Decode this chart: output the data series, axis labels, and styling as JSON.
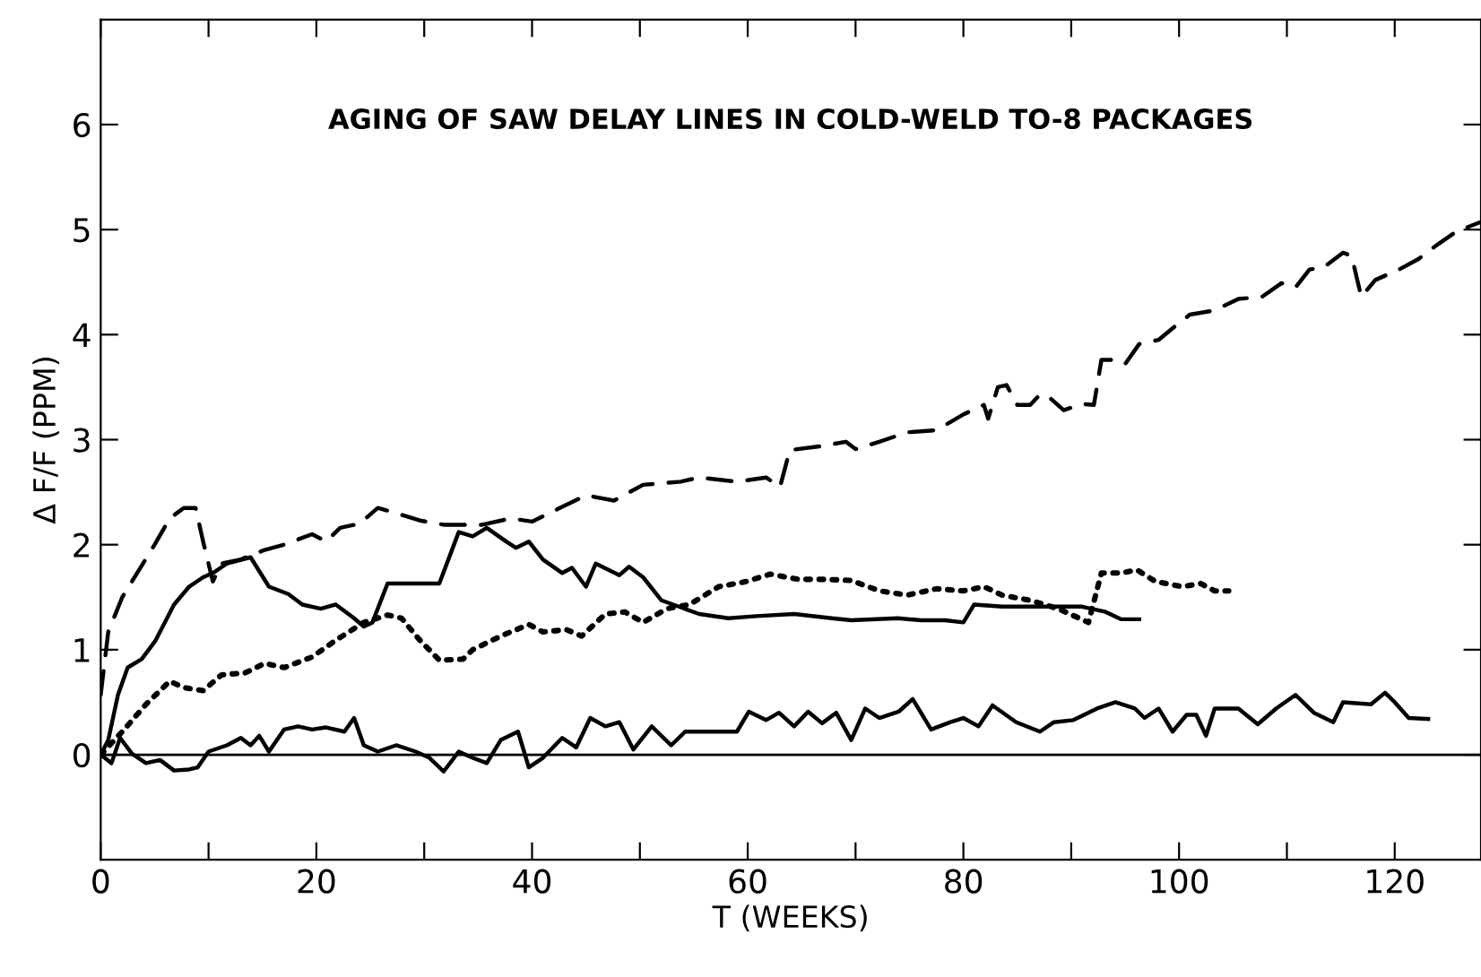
{
  "chart_data": {
    "type": "line",
    "title": "AGING OF SAW DELAY LINES IN COLD-WELD TO-8 PACKAGES",
    "xlabel": "T (WEEKS)",
    "ylabel": "Δ F/F (PPM)",
    "xlim": [
      0,
      128
    ],
    "ylim": [
      -1,
      7
    ],
    "xticks": [
      0,
      {
        "value": 10,
        "label": null
      },
      20,
      {
        "value": 30,
        "label": null
      },
      40,
      {
        "value": 50,
        "label": null
      },
      60,
      {
        "value": 70,
        "label": null
      },
      80,
      {
        "value": 90,
        "label": null
      },
      100,
      {
        "value": 110,
        "label": null
      },
      120
    ],
    "yticks": [
      0,
      1,
      2,
      3,
      4,
      5,
      6
    ],
    "grid": false,
    "marker": "none",
    "ref_lines": [
      {
        "axis": "y",
        "value": 0,
        "color": "#000000",
        "line_style": "solid"
      }
    ],
    "series": [
      {
        "color": "#000000",
        "line_style": "dashed",
        "x": [
          0,
          0.7,
          2,
          3.8,
          5,
          6.4,
          7.7,
          8.8,
          9.5,
          10.4,
          11.2,
          13,
          15.2,
          17,
          19.6,
          20.9,
          22.2,
          24,
          25.7,
          27.4,
          29.6,
          31.8,
          35.4,
          38,
          40,
          42.4,
          45,
          47.6,
          50.3,
          53.8,
          55.5,
          59,
          61.7,
          63,
          63.9,
          66.9,
          69.1,
          70,
          72.2,
          74.8,
          77.5,
          80,
          81.9,
          82.3,
          83.2,
          84,
          85,
          86.2,
          87.1,
          88,
          89.3,
          91,
          92.1,
          92.8,
          94.1,
          95,
          96.3,
          98.1,
          99.4,
          101,
          103.3,
          105.5,
          107.7,
          109.5,
          110.8,
          112.1,
          113.4,
          115.2,
          116,
          116.9,
          118.2,
          120.4,
          122.2,
          124,
          125.7,
          127.9
        ],
        "values": [
          0.57,
          1.17,
          1.5,
          1.8,
          2.0,
          2.25,
          2.35,
          2.35,
          2.03,
          1.65,
          1.82,
          1.86,
          1.95,
          2.0,
          2.1,
          2.03,
          2.16,
          2.2,
          2.35,
          2.3,
          2.23,
          2.19,
          2.19,
          2.25,
          2.22,
          2.34,
          2.47,
          2.42,
          2.57,
          2.6,
          2.64,
          2.6,
          2.64,
          2.55,
          2.9,
          2.94,
          2.98,
          2.91,
          2.98,
          3.07,
          3.09,
          3.24,
          3.33,
          3.2,
          3.5,
          3.52,
          3.33,
          3.33,
          3.43,
          3.4,
          3.28,
          3.34,
          3.33,
          3.76,
          3.76,
          3.72,
          3.91,
          3.95,
          4.06,
          4.19,
          4.23,
          4.34,
          4.36,
          4.49,
          4.45,
          4.62,
          4.64,
          4.78,
          4.75,
          4.36,
          4.52,
          4.62,
          4.72,
          4.86,
          4.98,
          5.07
        ]
      },
      {
        "color": "#000000",
        "line_style": "solid",
        "x": [
          0,
          0.7,
          1.6,
          2.5,
          3.8,
          5.1,
          6.8,
          8.2,
          9.5,
          10.4,
          11.7,
          13.9,
          15.6,
          17.4,
          18.7,
          20.4,
          21.8,
          23.5,
          24.4,
          25.2,
          26.6,
          31.4,
          33.2,
          34.5,
          35.8,
          37.6,
          38.5,
          39.7,
          41,
          42.8,
          43.7,
          45,
          45.9,
          48.1,
          49,
          50.3,
          52,
          55.5,
          58.2,
          60.8,
          64.3,
          67.8,
          69.6,
          73.9,
          76.1,
          78.3,
          80,
          81,
          83.6,
          87.1,
          91,
          93.2,
          94.6,
          96.3
        ],
        "values": [
          0,
          0.14,
          0.57,
          0.83,
          0.91,
          1.09,
          1.43,
          1.6,
          1.69,
          1.73,
          1.82,
          1.88,
          1.6,
          1.53,
          1.43,
          1.39,
          1.43,
          1.3,
          1.22,
          1.26,
          1.63,
          1.63,
          2.12,
          2.08,
          2.16,
          2.03,
          1.97,
          2.03,
          1.86,
          1.73,
          1.78,
          1.6,
          1.82,
          1.71,
          1.79,
          1.69,
          1.47,
          1.34,
          1.3,
          1.32,
          1.34,
          1.3,
          1.28,
          1.3,
          1.28,
          1.28,
          1.26,
          1.43,
          1.41,
          1.41,
          1.41,
          1.36,
          1.29,
          1.29
        ]
      },
      {
        "color": "#000000",
        "line_style": "dotted",
        "x": [
          0,
          2,
          4.2,
          6.4,
          7.7,
          9.5,
          11.2,
          13.4,
          15.2,
          17,
          19.6,
          21.8,
          24.4,
          26.6,
          27.9,
          29.6,
          31.4,
          33.6,
          34.5,
          37.1,
          39.7,
          41,
          43.2,
          44.6,
          46.8,
          48.6,
          50.3,
          52.5,
          54.6,
          57.3,
          59.9,
          62.1,
          64.7,
          66.9,
          69.6,
          72.2,
          74.8,
          77.5,
          80,
          81.9,
          83.6,
          86.2,
          88.8,
          91.6,
          92.8,
          94.6,
          96.1,
          97.8,
          100.3,
          102,
          103.3,
          104.6
        ],
        "values": [
          0,
          0.22,
          0.48,
          0.7,
          0.64,
          0.61,
          0.76,
          0.78,
          0.87,
          0.83,
          0.93,
          1.09,
          1.26,
          1.33,
          1.3,
          1.09,
          0.9,
          0.91,
          1.0,
          1.13,
          1.24,
          1.17,
          1.19,
          1.13,
          1.34,
          1.36,
          1.26,
          1.39,
          1.43,
          1.6,
          1.65,
          1.72,
          1.67,
          1.67,
          1.66,
          1.56,
          1.52,
          1.58,
          1.56,
          1.6,
          1.52,
          1.47,
          1.39,
          1.26,
          1.73,
          1.73,
          1.76,
          1.65,
          1.6,
          1.63,
          1.56,
          1.56
        ]
      },
      {
        "color": "#000000",
        "line_style": "solid",
        "x": [
          0,
          1,
          1.8,
          2.9,
          4.2,
          5.5,
          6.8,
          8.2,
          9,
          10,
          11.7,
          13,
          13.9,
          14.7,
          15.6,
          17,
          18.3,
          19.6,
          20.9,
          22.6,
          23.5,
          24.4,
          25.7,
          27.4,
          29.2,
          30.5,
          31.8,
          33.2,
          34.5,
          35.8,
          37.1,
          38.7,
          39.7,
          41,
          42.8,
          44.1,
          45.4,
          46.8,
          48.1,
          49.4,
          51.1,
          52.9,
          54.2,
          56,
          59,
          60.1,
          61.7,
          62.9,
          64.3,
          65.6,
          66.9,
          68.2,
          69.6,
          70.9,
          72.2,
          74,
          75.3,
          77,
          78.8,
          80,
          81.4,
          82.7,
          84.9,
          87.1,
          88.4,
          90.2,
          92.4,
          94.1,
          95.9,
          96.8,
          98.1,
          99.4,
          100.7,
          101.6,
          102.5,
          103.3,
          105.5,
          107.3,
          109,
          110.8,
          112.5,
          114.3,
          115.2,
          117.8,
          119.1,
          120,
          121.3,
          123.1
        ],
        "values": [
          0,
          -0.08,
          0.16,
          0.01,
          -0.08,
          -0.05,
          -0.15,
          -0.14,
          -0.12,
          0.03,
          0.09,
          0.16,
          0.09,
          0.18,
          0.03,
          0.24,
          0.27,
          0.24,
          0.26,
          0.22,
          0.35,
          0.09,
          0.03,
          0.09,
          0.03,
          -0.03,
          -0.16,
          0.03,
          -0.03,
          -0.08,
          0.14,
          0.22,
          -0.12,
          -0.03,
          0.16,
          0.07,
          0.35,
          0.27,
          0.31,
          0.05,
          0.27,
          0.09,
          0.22,
          0.22,
          0.22,
          0.41,
          0.33,
          0.4,
          0.27,
          0.41,
          0.3,
          0.4,
          0.14,
          0.44,
          0.35,
          0.41,
          0.53,
          0.24,
          0.31,
          0.35,
          0.27,
          0.47,
          0.31,
          0.22,
          0.31,
          0.33,
          0.44,
          0.5,
          0.44,
          0.35,
          0.44,
          0.22,
          0.38,
          0.38,
          0.18,
          0.44,
          0.44,
          0.29,
          0.44,
          0.57,
          0.4,
          0.31,
          0.5,
          0.48,
          0.59,
          0.5,
          0.35,
          0.34
        ]
      }
    ]
  }
}
